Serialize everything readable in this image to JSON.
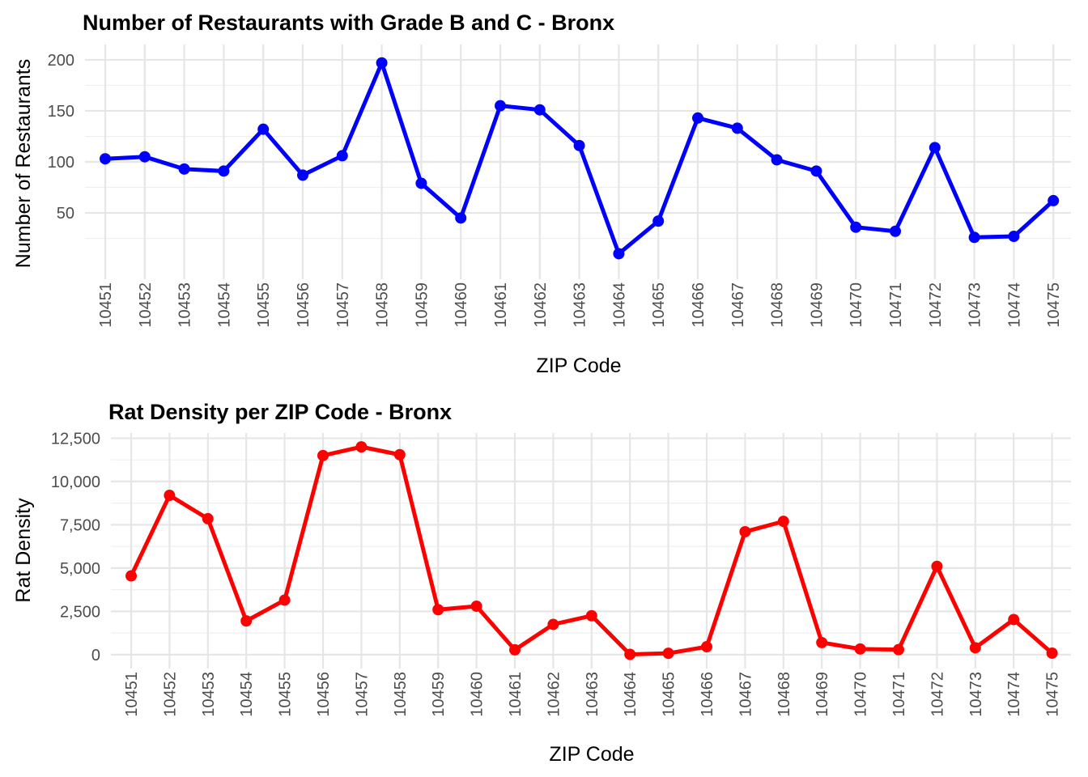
{
  "chart_data": [
    {
      "type": "line",
      "title": "Number of Restaurants with Grade B and C - Bronx",
      "xlabel": "ZIP Code",
      "ylabel": "Number of Restaurants",
      "categories": [
        "10451",
        "10452",
        "10453",
        "10454",
        "10455",
        "10456",
        "10457",
        "10458",
        "10459",
        "10460",
        "10461",
        "10462",
        "10463",
        "10464",
        "10465",
        "10466",
        "10467",
        "10468",
        "10469",
        "10470",
        "10471",
        "10472",
        "10473",
        "10474",
        "10475"
      ],
      "series": [
        {
          "values": [
            103,
            105,
            93,
            91,
            132,
            87,
            106,
            197,
            79,
            45,
            155,
            151,
            116,
            10,
            42,
            143,
            133,
            102,
            91,
            36,
            32,
            114,
            26,
            27,
            62
          ]
        }
      ],
      "yticks": [
        50,
        100,
        150,
        200
      ],
      "ytick_labels": [
        "50",
        "100",
        "150",
        "200"
      ],
      "ylim": [
        -15,
        215
      ],
      "color": "#0000ff",
      "grid": true
    },
    {
      "type": "line",
      "title": "Rat Density per ZIP Code - Bronx",
      "xlabel": "ZIP Code",
      "ylabel": "Rat Density",
      "categories": [
        "10451",
        "10452",
        "10453",
        "10454",
        "10455",
        "10456",
        "10457",
        "10458",
        "10459",
        "10460",
        "10461",
        "10462",
        "10463",
        "10464",
        "10465",
        "10466",
        "10467",
        "10468",
        "10469",
        "10470",
        "10471",
        "10472",
        "10473",
        "10474",
        "10475"
      ],
      "series": [
        {
          "values": [
            4550,
            9200,
            7850,
            1950,
            3150,
            11500,
            12000,
            11550,
            2600,
            2800,
            280,
            1750,
            2250,
            20,
            80,
            460,
            7100,
            7700,
            700,
            330,
            290,
            5100,
            400,
            2030,
            90
          ]
        }
      ],
      "yticks": [
        0,
        2500,
        5000,
        7500,
        10000,
        12500
      ],
      "ytick_labels": [
        "0",
        "2,500",
        "5,000",
        "7,500",
        "10,000",
        "12,500"
      ],
      "ylim": [
        -800,
        12800
      ],
      "color": "#ff0000",
      "grid": true
    }
  ]
}
